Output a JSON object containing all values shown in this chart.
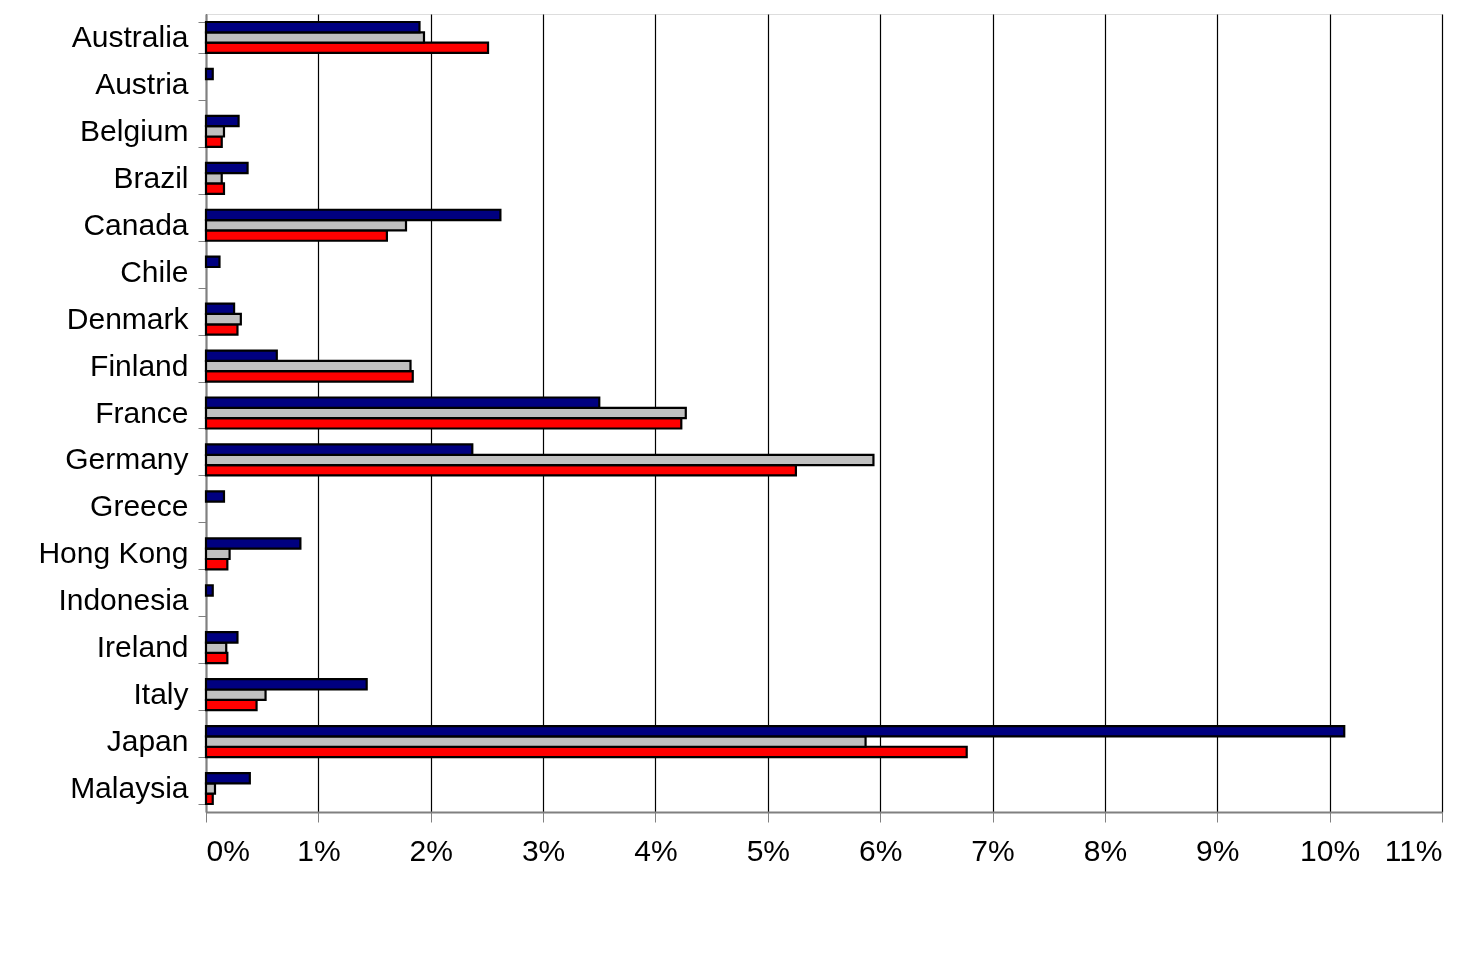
{
  "chart_data": {
    "type": "bar",
    "orientation": "horizontal",
    "categories": [
      "Australia",
      "Austria",
      "Belgium",
      "Brazil",
      "Canada",
      "Chile",
      "Denmark",
      "Finland",
      "France",
      "Germany",
      "Greece",
      "Hong Kong",
      "Indonesia",
      "Ireland",
      "Italy",
      "Japan",
      "Malaysia"
    ],
    "series": [
      {
        "color": "#ff0000",
        "values": [
          2.51,
          null,
          0.14,
          0.16,
          1.61,
          null,
          0.28,
          1.84,
          4.23,
          5.25,
          null,
          0.19,
          null,
          0.19,
          0.45,
          6.77,
          0.06
        ]
      },
      {
        "color": "#c0c0c0",
        "values": [
          1.94,
          null,
          0.16,
          0.14,
          1.78,
          null,
          0.31,
          1.82,
          4.27,
          5.94,
          null,
          0.21,
          null,
          0.18,
          0.53,
          5.87,
          0.08
        ]
      },
      {
        "color": "#000080",
        "values": [
          1.9,
          0.06,
          0.29,
          0.37,
          2.62,
          0.12,
          0.25,
          0.63,
          3.5,
          2.37,
          0.16,
          0.84,
          0.06,
          0.28,
          1.43,
          10.13,
          0.39
        ]
      }
    ],
    "xlim": [
      0,
      11
    ],
    "xticks": [
      {
        "value": 0,
        "label": "0%"
      },
      {
        "value": 1,
        "label": "1%"
      },
      {
        "value": 2,
        "label": "2%"
      },
      {
        "value": 3,
        "label": "3%"
      },
      {
        "value": 4,
        "label": "4%"
      },
      {
        "value": 5,
        "label": "5%"
      },
      {
        "value": 6,
        "label": "6%"
      },
      {
        "value": 7,
        "label": "7%"
      },
      {
        "value": 8,
        "label": "8%"
      },
      {
        "value": 9,
        "label": "9%"
      },
      {
        "value": 10,
        "label": "10%"
      },
      {
        "value": 11,
        "label": "11%"
      }
    ],
    "grid": "x"
  }
}
